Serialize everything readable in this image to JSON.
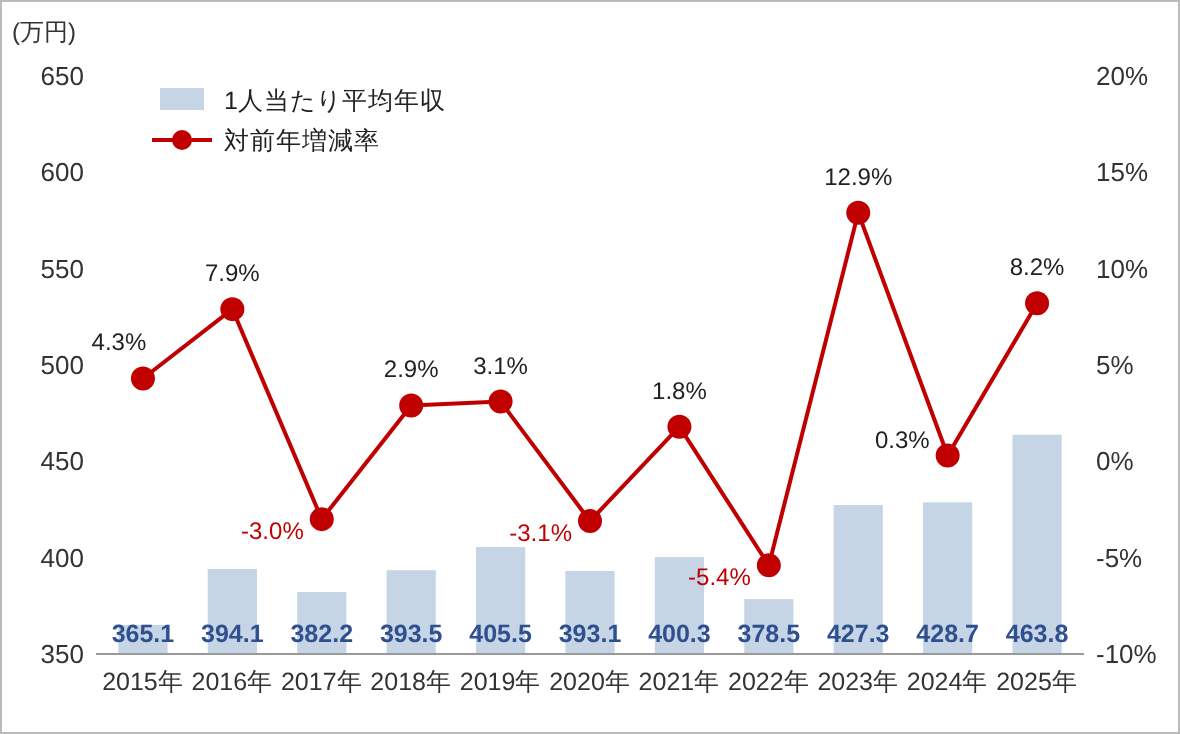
{
  "chart_data": {
    "type": "bar",
    "ylabel": "(万円)",
    "categories": [
      "2015年",
      "2016年",
      "2017年",
      "2018年",
      "2019年",
      "2020年",
      "2021年",
      "2022年",
      "2023年",
      "2024年",
      "2025年"
    ],
    "series": [
      {
        "name": "1人当たり平均年収",
        "color": "#c5d5e6",
        "values": [
          365.1,
          394.1,
          382.2,
          393.5,
          405.5,
          393.1,
          400.3,
          378.5,
          427.3,
          428.7,
          463.8
        ],
        "value_labels": [
          "365.1",
          "394.1",
          "382.2",
          "393.5",
          "405.5",
          "393.1",
          "400.3",
          "378.5",
          "427.3",
          "428.7",
          "463.8"
        ]
      },
      {
        "name": "対前年増減率",
        "type": "line",
        "axis": "y2",
        "color": "#c00000",
        "values": [
          4.3,
          7.9,
          -3.0,
          2.9,
          3.1,
          -3.1,
          1.8,
          -5.4,
          12.9,
          0.3,
          8.2
        ],
        "value_labels": [
          "4.3%",
          "7.9%",
          "-3.0%",
          "2.9%",
          "3.1%",
          "-3.1%",
          "1.8%",
          "-5.4%",
          "12.9%",
          "0.3%",
          "8.2%"
        ]
      }
    ],
    "ylim": [
      350,
      650
    ],
    "yticks": [
      350,
      400,
      450,
      500,
      550,
      600,
      650
    ],
    "y2lim": [
      -10,
      20
    ],
    "y2ticks": [
      {
        "value": -10,
        "label": "-10%"
      },
      {
        "value": -5,
        "label": "-5%"
      },
      {
        "value": 0,
        "label": "0%"
      },
      {
        "value": 5,
        "label": "5%"
      },
      {
        "value": 10,
        "label": "10%"
      },
      {
        "value": 15,
        "label": "15%"
      },
      {
        "value": 20,
        "label": "20%"
      }
    ],
    "legend": "top left",
    "marker": "circle",
    "line_style": "solid"
  }
}
